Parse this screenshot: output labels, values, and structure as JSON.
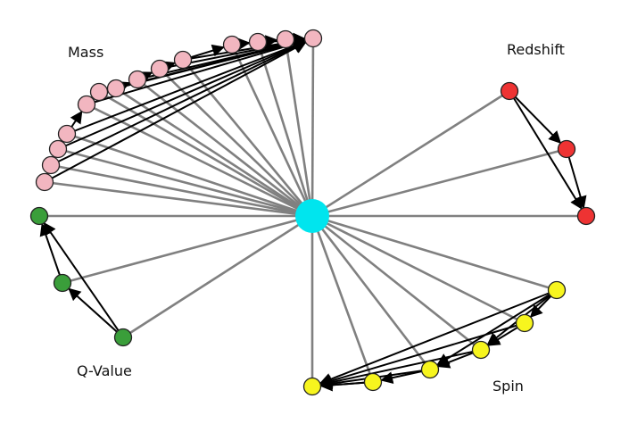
{
  "labels": {
    "mass": "Mass",
    "redshift": "Redshift",
    "qvalue": "Q-Value",
    "spin": "Spin"
  },
  "colors": {
    "hub": "#00e5ee",
    "mass": "#f2b6c0",
    "redshift": "#ee3333",
    "qvalue": "#3a9e3a",
    "spin": "#f7f51e",
    "spoke": "#808080",
    "arrow": "#000000"
  },
  "groups": [
    {
      "key": "mass",
      "node_count": 14
    },
    {
      "key": "redshift",
      "node_count": 3
    },
    {
      "key": "qvalue",
      "node_count": 3
    },
    {
      "key": "spin",
      "node_count": 6
    }
  ]
}
